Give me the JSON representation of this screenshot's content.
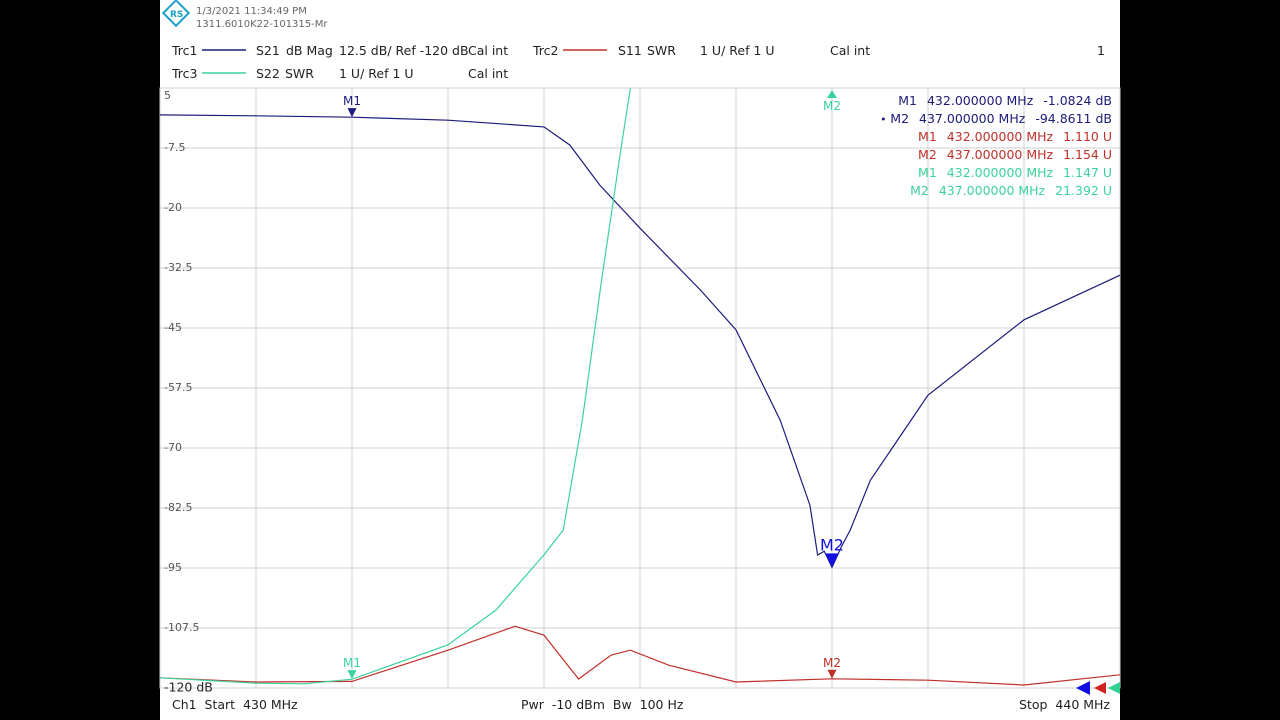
{
  "header": {
    "date": "1/3/2021 11:34:49 PM",
    "device": "1311.6010K22-101315-Mr",
    "channel_number": "1"
  },
  "trace_info": [
    {
      "name": "Trc1",
      "param": "S21",
      "format": "dB Mag",
      "scale": "12.5 dB/ Ref -120 dB",
      "cal": "Cal int"
    },
    {
      "name": "Trc2",
      "param": "S11",
      "format": "SWR",
      "scale": "1 U/ Ref 1 U",
      "cal": "Cal int"
    },
    {
      "name": "Trc3",
      "param": "S22",
      "format": "SWR",
      "scale": "1 U/ Ref 1 U",
      "cal": "Cal int"
    }
  ],
  "chart_data": {
    "type": "line",
    "xlim": [
      430,
      440
    ],
    "xticks": [
      430,
      431,
      432,
      433,
      434,
      435,
      436,
      437,
      438,
      439,
      440
    ],
    "ylim": [
      -120,
      5
    ],
    "yticks": [
      {
        "value": -120,
        "label": "-120 dB"
      },
      -107.5,
      -95,
      -82.5,
      -70,
      -57.5,
      -45,
      -32.5,
      -20,
      -7.5,
      5
    ],
    "y2lim": [
      1,
      11
    ],
    "grid": true,
    "series": [
      {
        "name": "S21",
        "color": "#1c1c7a",
        "x": [
          430,
          431,
          432,
          433,
          434,
          434.27,
          434.58,
          435,
          435.63,
          436,
          436.46,
          436.77,
          436.85,
          436.92,
          437,
          437.1,
          437.19,
          437.4,
          438,
          439,
          440
        ],
        "values": [
          -0.6,
          -0.8,
          -1.08,
          -1.7,
          -3.1,
          -6.9,
          -15.2,
          -24.2,
          -37.1,
          -45.4,
          -64.2,
          -81.9,
          -92.3,
          -91.5,
          -94.86,
          -90.5,
          -87.1,
          -76.7,
          -59,
          -43.3,
          -34
        ],
        "markers": [
          {
            "name": "M1",
            "x": 432
          },
          {
            "name": "M2",
            "x": 437
          }
        ]
      },
      {
        "name": "S11",
        "color": "#c0302a",
        "axis": "y2",
        "x": [
          430,
          431,
          432,
          433,
          433.7,
          434,
          434.36,
          434.7,
          434.9,
          435.3,
          436,
          437,
          438,
          439,
          440
        ],
        "values": [
          1.17,
          1.1,
          1.11,
          1.63,
          2.03,
          1.88,
          1.15,
          1.55,
          1.63,
          1.38,
          1.1,
          1.154,
          1.13,
          1.05,
          1.22
        ],
        "markers": [
          {
            "name": "M2",
            "x": 437
          }
        ]
      },
      {
        "name": "S22",
        "color": "#3cd39b",
        "axis": "y2",
        "x": [
          430,
          431,
          431.5,
          432,
          433,
          433.5,
          434,
          434.2,
          434.4,
          434.6,
          434.8,
          434.9
        ],
        "values": [
          1.17,
          1.08,
          1.07,
          1.147,
          1.72,
          2.3,
          3.22,
          3.63,
          5.47,
          7.8,
          9.97,
          11
        ],
        "markers": [
          {
            "name": "M1",
            "x": 432
          },
          {
            "name": "M2",
            "x": 437
          }
        ]
      }
    ]
  },
  "marker_readouts": [
    {
      "label": "M1",
      "stimulus": "432.000000 MHz",
      "response": "-1.0824 dB",
      "color": "#1c1c7a"
    },
    {
      "label": "M2",
      "stimulus": "437.000000 MHz",
      "response": "-94.8611 dB",
      "color": "#1c1c7a"
    },
    {
      "label": "M1",
      "stimulus": "432.000000 MHz",
      "response": "1.110 U",
      "color": "#c0302a"
    },
    {
      "label": "M2",
      "stimulus": "437.000000 MHz",
      "response": "1.154 U",
      "color": "#c0302a"
    },
    {
      "label": "M1",
      "stimulus": "432.000000 MHz",
      "response": "1.147 U",
      "color": "#3cd39b"
    },
    {
      "label": "M2",
      "stimulus": "437.000000 MHz",
      "response": "21.392 U",
      "color": "#3cd39b"
    }
  ],
  "footer": {
    "start": "Ch1  Start  430 MHz",
    "middle": "Pwr  -10 dBm  Bw  100 Hz",
    "stop": "Stop  440 MHz"
  }
}
